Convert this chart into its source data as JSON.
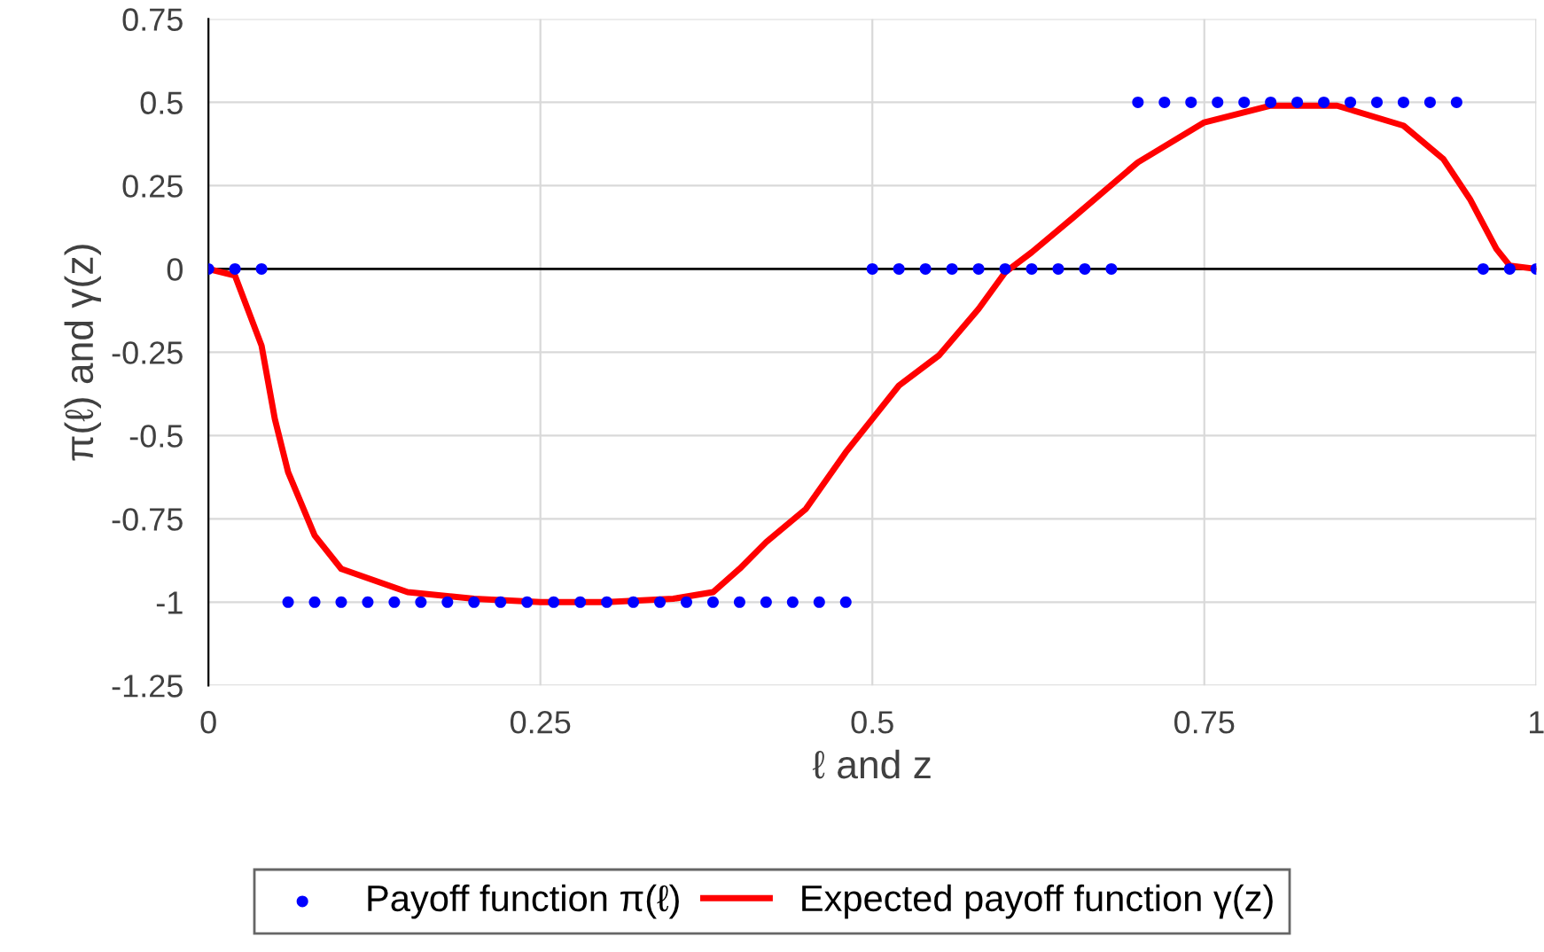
{
  "chart_data": {
    "type": "scatter",
    "xlabel": "ℓ and z",
    "ylabel": "π(ℓ) and γ(z)",
    "xlim": [
      0,
      1
    ],
    "xticks": [
      0,
      0.25,
      0.5,
      0.75,
      1
    ],
    "ylim": [
      -1.25,
      0.75
    ],
    "yticks": [
      -1.25,
      -1,
      -0.75,
      -0.5,
      -0.25,
      0,
      0.25,
      0.5,
      0.75
    ],
    "grid": true,
    "legend": "bottom",
    "series": [
      {
        "name": "Payoff function π(ℓ)",
        "marker": "circle",
        "color": "#0000ff",
        "x": [
          0,
          0.02,
          0.04,
          0.06,
          0.08,
          0.1,
          0.12,
          0.14,
          0.16,
          0.18,
          0.2,
          0.22,
          0.24,
          0.26,
          0.28,
          0.3,
          0.32,
          0.34,
          0.36,
          0.38,
          0.4,
          0.42,
          0.44,
          0.46,
          0.48,
          0.5,
          0.52,
          0.54,
          0.56,
          0.58,
          0.6,
          0.62,
          0.64,
          0.66,
          0.68,
          0.7,
          0.72,
          0.74,
          0.76,
          0.78,
          0.8,
          0.82,
          0.84,
          0.86,
          0.88,
          0.9,
          0.92,
          0.94,
          0.96,
          0.98,
          1
        ],
        "values": [
          0,
          0,
          0,
          -1,
          -1,
          -1,
          -1,
          -1,
          -1,
          -1,
          -1,
          -1,
          -1,
          -1,
          -1,
          -1,
          -1,
          -1,
          -1,
          -1,
          -1,
          -1,
          -1,
          -1,
          -1,
          0,
          0,
          0,
          0,
          0,
          0,
          0,
          0,
          0,
          0,
          0.5,
          0.5,
          0.5,
          0.5,
          0.5,
          0.5,
          0.5,
          0.5,
          0.5,
          0.5,
          0.5,
          0.5,
          0.5,
          0,
          0,
          0
        ]
      },
      {
        "name": "Expected payoff function γ(z)",
        "type": "line",
        "marker": "none",
        "line_style": "solid",
        "color": "#ff0000",
        "x": [
          0,
          0.02,
          0.04,
          0.05,
          0.06,
          0.08,
          0.1,
          0.15,
          0.2,
          0.25,
          0.3,
          0.35,
          0.38,
          0.4,
          0.42,
          0.45,
          0.48,
          0.5,
          0.52,
          0.55,
          0.58,
          0.6,
          0.62,
          0.65,
          0.7,
          0.75,
          0.8,
          0.85,
          0.9,
          0.93,
          0.95,
          0.97,
          0.98,
          1
        ],
        "values": [
          0,
          -0.02,
          -0.23,
          -0.45,
          -0.61,
          -0.8,
          -0.9,
          -0.97,
          -0.99,
          -1,
          -1,
          -0.99,
          -0.97,
          -0.9,
          -0.82,
          -0.72,
          -0.55,
          -0.45,
          -0.35,
          -0.26,
          -0.12,
          -0.01,
          0.05,
          0.15,
          0.32,
          0.44,
          0.49,
          0.49,
          0.43,
          0.33,
          0.21,
          0.06,
          0.01,
          0
        ]
      }
    ]
  }
}
